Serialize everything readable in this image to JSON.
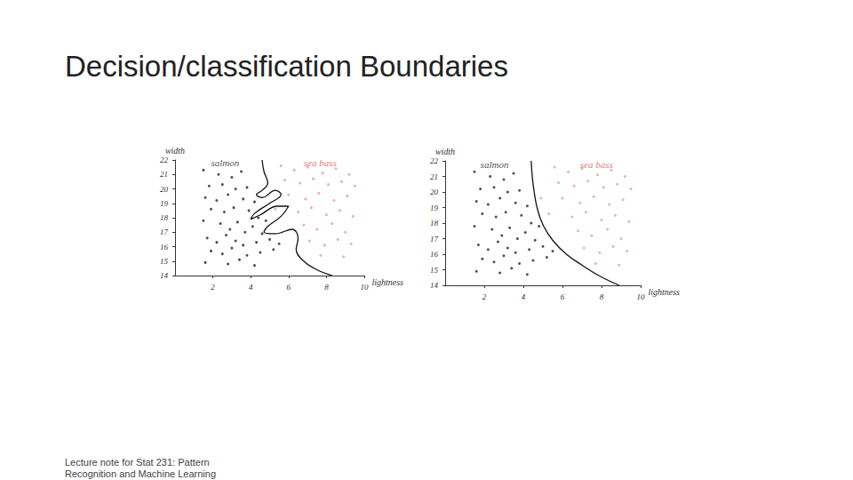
{
  "title": "Decision/classification Boundaries",
  "footer": "Lecture note for Stat 231: Pattern Recognition and Machine Learning",
  "chart_data": [
    {
      "type": "scatter",
      "x_label": "lightness",
      "y_label": "width",
      "xlim": [
        0,
        10
      ],
      "xticks": [
        2,
        4,
        6,
        8,
        10
      ],
      "ylim": [
        14,
        22
      ],
      "yticks": [
        14,
        15,
        16,
        17,
        18,
        19,
        20,
        21,
        22
      ],
      "grid": false,
      "series": [
        {
          "type": "scatter",
          "color": "#222222",
          "values": [
            [
              1.5,
              21.3
            ],
            [
              2.3,
              21.0
            ],
            [
              3.0,
              20.8
            ],
            [
              3.5,
              21.2
            ],
            [
              1.8,
              20.2
            ],
            [
              2.5,
              20.3
            ],
            [
              3.2,
              20.0
            ],
            [
              3.8,
              20.1
            ],
            [
              1.6,
              19.4
            ],
            [
              2.2,
              19.2
            ],
            [
              2.8,
              19.6
            ],
            [
              3.6,
              19.3
            ],
            [
              4.2,
              19.1
            ],
            [
              1.9,
              18.6
            ],
            [
              2.6,
              18.4
            ],
            [
              3.1,
              18.7
            ],
            [
              3.9,
              18.5
            ],
            [
              4.4,
              18.0
            ],
            [
              1.5,
              17.8
            ],
            [
              2.4,
              17.6
            ],
            [
              2.9,
              17.2
            ],
            [
              3.3,
              17.7
            ],
            [
              3.7,
              17.0
            ],
            [
              4.1,
              17.4
            ],
            [
              4.6,
              16.9
            ],
            [
              1.7,
              16.6
            ],
            [
              2.2,
              16.3
            ],
            [
              2.7,
              16.8
            ],
            [
              3.2,
              16.4
            ],
            [
              3.6,
              16.1
            ],
            [
              4.3,
              16.3
            ],
            [
              5.0,
              16.5
            ],
            [
              1.9,
              15.7
            ],
            [
              2.5,
              15.5
            ],
            [
              3.0,
              15.9
            ],
            [
              3.8,
              15.4
            ],
            [
              4.5,
              15.6
            ],
            [
              1.6,
              14.9
            ],
            [
              2.8,
              14.8
            ],
            [
              3.4,
              15.1
            ],
            [
              4.2,
              14.7
            ],
            [
              5.2,
              15.8
            ],
            [
              4.8,
              17.8
            ],
            [
              5.5,
              16.2
            ]
          ]
        },
        {
          "type": "scatter",
          "color": "#e89a9a",
          "values": [
            [
              5.6,
              21.6
            ],
            [
              6.3,
              21.3
            ],
            [
              7.0,
              21.5
            ],
            [
              7.8,
              21.1
            ],
            [
              8.5,
              21.4
            ],
            [
              9.2,
              21.0
            ],
            [
              5.8,
              20.6
            ],
            [
              6.6,
              20.4
            ],
            [
              7.3,
              20.7
            ],
            [
              8.1,
              20.3
            ],
            [
              8.8,
              20.5
            ],
            [
              9.5,
              20.2
            ],
            [
              6.0,
              19.6
            ],
            [
              6.9,
              19.3
            ],
            [
              7.6,
              19.7
            ],
            [
              8.4,
              19.2
            ],
            [
              9.1,
              19.5
            ],
            [
              6.5,
              18.4
            ],
            [
              7.2,
              18.7
            ],
            [
              8.0,
              18.2
            ],
            [
              8.7,
              18.5
            ],
            [
              9.4,
              18.1
            ],
            [
              6.8,
              17.5
            ],
            [
              7.5,
              17.2
            ],
            [
              8.3,
              17.6
            ],
            [
              9.0,
              17.0
            ],
            [
              7.1,
              16.4
            ],
            [
              7.9,
              16.1
            ],
            [
              8.6,
              16.5
            ],
            [
              9.3,
              16.2
            ],
            [
              7.7,
              15.4
            ],
            [
              8.9,
              15.3
            ],
            [
              5.3,
              18.6
            ],
            [
              4.9,
              19.6
            ]
          ]
        },
        {
          "type": "line",
          "color": "#111111",
          "values": [
            [
              4.6,
              22.0
            ],
            [
              4.7,
              21.2
            ],
            [
              4.9,
              20.4
            ],
            [
              4.6,
              19.9
            ],
            [
              4.3,
              19.6
            ],
            [
              4.6,
              19.4
            ],
            [
              5.3,
              19.9
            ],
            [
              5.6,
              19.6
            ],
            [
              5.0,
              19.0
            ],
            [
              4.2,
              18.3
            ],
            [
              4.0,
              17.9
            ],
            [
              4.5,
              18.2
            ],
            [
              5.4,
              18.8
            ],
            [
              6.0,
              18.8
            ],
            [
              5.6,
              18.1
            ],
            [
              4.9,
              17.4
            ],
            [
              4.7,
              17.0
            ],
            [
              5.3,
              16.9
            ],
            [
              6.2,
              17.2
            ],
            [
              6.5,
              16.6
            ],
            [
              6.4,
              15.8
            ],
            [
              6.8,
              15.0
            ],
            [
              7.5,
              14.4
            ],
            [
              8.3,
              14.0
            ]
          ]
        }
      ],
      "annotations": [
        {
          "text": "salmon",
          "x": 1.9,
          "y": 21.8,
          "color": "#222222"
        },
        {
          "text": "sea bass",
          "x": 6.8,
          "y": 21.8,
          "color": "#d9534f"
        }
      ]
    },
    {
      "type": "scatter",
      "x_label": "lightness",
      "y_label": "width",
      "xlim": [
        0,
        10
      ],
      "xticks": [
        2,
        4,
        6,
        8,
        10
      ],
      "ylim": [
        14,
        22
      ],
      "yticks": [
        14,
        15,
        16,
        17,
        18,
        19,
        20,
        21,
        22
      ],
      "grid": false,
      "series": [
        {
          "type": "scatter",
          "color": "#222222",
          "values": [
            [
              1.5,
              21.3
            ],
            [
              2.3,
              21.0
            ],
            [
              3.0,
              20.8
            ],
            [
              3.5,
              21.2
            ],
            [
              1.8,
              20.2
            ],
            [
              2.5,
              20.3
            ],
            [
              3.2,
              20.0
            ],
            [
              3.8,
              20.1
            ],
            [
              1.6,
              19.4
            ],
            [
              2.2,
              19.2
            ],
            [
              2.8,
              19.6
            ],
            [
              3.6,
              19.3
            ],
            [
              4.2,
              19.1
            ],
            [
              1.9,
              18.6
            ],
            [
              2.6,
              18.4
            ],
            [
              3.1,
              18.7
            ],
            [
              3.9,
              18.5
            ],
            [
              4.4,
              18.0
            ],
            [
              1.5,
              17.8
            ],
            [
              2.4,
              17.6
            ],
            [
              2.9,
              17.2
            ],
            [
              3.3,
              17.7
            ],
            [
              3.7,
              17.0
            ],
            [
              4.1,
              17.4
            ],
            [
              4.6,
              16.9
            ],
            [
              1.7,
              16.6
            ],
            [
              2.2,
              16.3
            ],
            [
              2.7,
              16.8
            ],
            [
              3.2,
              16.4
            ],
            [
              3.6,
              16.1
            ],
            [
              4.3,
              16.3
            ],
            [
              5.0,
              16.5
            ],
            [
              1.9,
              15.7
            ],
            [
              2.5,
              15.5
            ],
            [
              3.0,
              15.9
            ],
            [
              3.8,
              15.4
            ],
            [
              4.5,
              15.6
            ],
            [
              1.6,
              14.9
            ],
            [
              2.8,
              14.8
            ],
            [
              3.4,
              15.1
            ],
            [
              4.2,
              14.7
            ],
            [
              5.2,
              15.8
            ],
            [
              4.8,
              17.8
            ],
            [
              5.5,
              16.2
            ]
          ]
        },
        {
          "type": "scatter",
          "color": "#e89a9a",
          "values": [
            [
              5.6,
              21.6
            ],
            [
              6.3,
              21.3
            ],
            [
              7.0,
              21.5
            ],
            [
              7.8,
              21.1
            ],
            [
              8.5,
              21.4
            ],
            [
              9.2,
              21.0
            ],
            [
              5.8,
              20.6
            ],
            [
              6.6,
              20.4
            ],
            [
              7.3,
              20.7
            ],
            [
              8.1,
              20.3
            ],
            [
              8.8,
              20.5
            ],
            [
              9.5,
              20.2
            ],
            [
              6.0,
              19.6
            ],
            [
              6.9,
              19.3
            ],
            [
              7.6,
              19.7
            ],
            [
              8.4,
              19.2
            ],
            [
              9.1,
              19.5
            ],
            [
              6.5,
              18.4
            ],
            [
              7.2,
              18.7
            ],
            [
              8.0,
              18.2
            ],
            [
              8.7,
              18.5
            ],
            [
              9.4,
              18.1
            ],
            [
              6.8,
              17.5
            ],
            [
              7.5,
              17.2
            ],
            [
              8.3,
              17.6
            ],
            [
              9.0,
              17.0
            ],
            [
              7.1,
              16.4
            ],
            [
              7.9,
              16.1
            ],
            [
              8.6,
              16.5
            ],
            [
              9.3,
              16.2
            ],
            [
              7.7,
              15.4
            ],
            [
              8.9,
              15.3
            ],
            [
              5.3,
              18.6
            ],
            [
              4.9,
              19.6
            ]
          ]
        },
        {
          "type": "line",
          "color": "#111111",
          "values": [
            [
              4.4,
              22.0
            ],
            [
              4.5,
              20.5
            ],
            [
              4.7,
              19.0
            ],
            [
              5.0,
              17.9
            ],
            [
              5.5,
              16.9
            ],
            [
              6.2,
              16.0
            ],
            [
              7.0,
              15.3
            ],
            [
              7.9,
              14.6
            ],
            [
              8.9,
              14.0
            ]
          ]
        }
      ],
      "annotations": [
        {
          "text": "salmon",
          "x": 1.8,
          "y": 21.8,
          "color": "#222222"
        },
        {
          "text": "sea bass",
          "x": 6.9,
          "y": 21.8,
          "color": "#d9534f"
        }
      ]
    }
  ]
}
